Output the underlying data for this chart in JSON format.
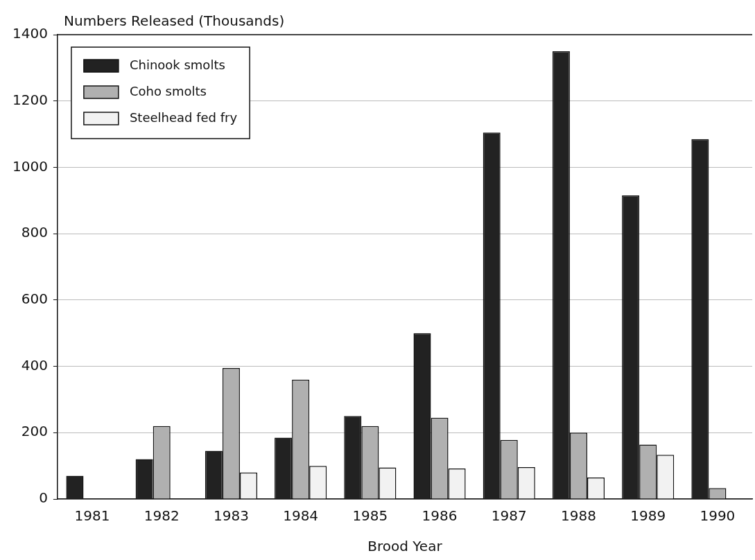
{
  "chart_data": {
    "type": "bar",
    "ylabel": "Numbers Released (Thousands)",
    "xlabel": "Brood Year",
    "categories": [
      "1981",
      "1982",
      "1983",
      "1984",
      "1985",
      "1986",
      "1987",
      "1988",
      "1989",
      "1990"
    ],
    "series": [
      {
        "name": "Chinook smolts",
        "color": "#222222",
        "values": [
          70,
          120,
          145,
          185,
          250,
          500,
          1105,
          1350,
          915,
          1085
        ]
      },
      {
        "name": "Coho smolts",
        "color": "#b0b0b0",
        "values": [
          0,
          220,
          395,
          360,
          220,
          245,
          178,
          200,
          164,
          33
        ]
      },
      {
        "name": "Steelhead fed fry",
        "color": "#f2f2f2",
        "values": [
          0,
          0,
          80,
          100,
          95,
          92,
          96,
          65,
          133,
          0
        ]
      }
    ],
    "ylim": [
      0,
      1400
    ],
    "yticks": [
      0,
      200,
      400,
      600,
      800,
      1000,
      1200,
      1400
    ],
    "grid": "y",
    "legend": "top left"
  }
}
